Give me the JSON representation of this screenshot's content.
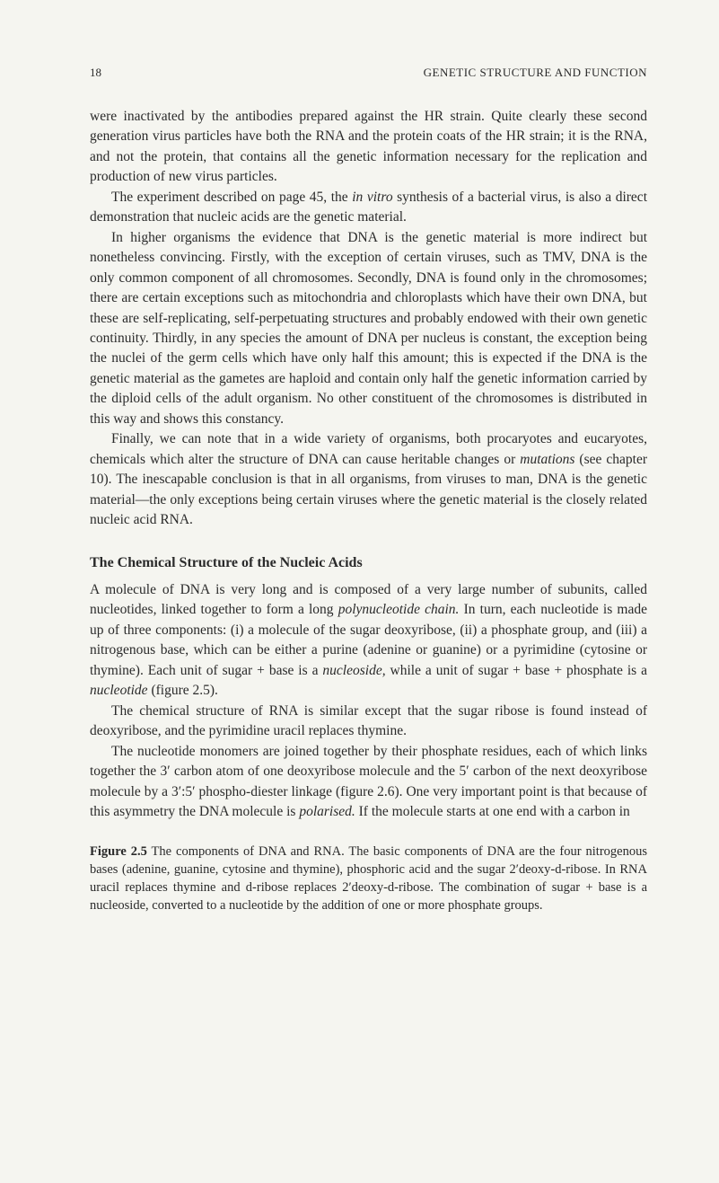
{
  "page": {
    "number": "18",
    "running_head": "GENETIC STRUCTURE AND FUNCTION"
  },
  "paragraphs": {
    "p1": "were inactivated by the antibodies prepared against the HR strain. Quite clearly these second generation virus particles have both the RNA and the protein coats of the HR strain; it is the RNA, and not the protein, that contains all the genetic information necessary for the replication and production of new virus particles.",
    "p2_a": "The experiment described on page 45, the ",
    "p2_italic": "in vitro",
    "p2_b": " synthesis of a bacterial virus, is also a direct demonstration that nucleic acids are the genetic material.",
    "p3": "In higher organisms the evidence that DNA is the genetic material is more indirect but nonetheless convincing. Firstly, with the exception of certain viruses, such as TMV, DNA is the only common component of all chromosomes. Secondly, DNA is found only in the chromosomes; there are certain exceptions such as mitochondria and chloroplasts which have their own DNA, but these are self-replicating, self-perpetuating structures and probably endowed with their own genetic continuity. Thirdly, in any species the amount of DNA per nucleus is constant, the exception being the nuclei of the germ cells which have only half this amount; this is expected if the DNA is the genetic material as the gametes are haploid and contain only half the genetic information carried by the diploid cells of the adult organism. No other constituent of the chromosomes is distributed in this way and shows this constancy.",
    "p4_a": "Finally, we can note that in a wide variety of organisms, both procaryotes and eucaryotes, chemicals which alter the structure of DNA can cause heritable changes or ",
    "p4_italic": "mutations",
    "p4_b": " (see chapter 10). The inescapable conclusion is that in all organisms, from viruses to man, DNA is the genetic material—the only exceptions being certain viruses where the genetic material is the closely related nucleic acid RNA."
  },
  "section": {
    "heading": "The Chemical Structure of the Nucleic Acids",
    "p5_a": "A molecule of DNA is very long and is composed of a very large number of subunits, called nucleotides, linked together to form a long ",
    "p5_italic1": "polynucleotide chain.",
    "p5_b": " In turn, each nucleotide is made up of three components: (i) a molecule of the sugar deoxyribose, (ii) a phosphate group, and (iii) a nitrogenous base, which can be either a purine (adenine or guanine) or a pyrimidine (cytosine or thymine). Each unit of sugar + base is a ",
    "p5_italic2": "nucleoside,",
    "p5_c": " while a unit of sugar + base + phosphate is a ",
    "p5_italic3": "nucleotide",
    "p5_d": " (figure 2.5).",
    "p6": "The chemical structure of RNA is similar except that the sugar ribose is found instead of deoxyribose, and the pyrimidine uracil replaces thymine.",
    "p7_a": "The nucleotide monomers are joined together by their phosphate residues, each of which links together the 3′ carbon atom of one deoxyribose molecule and the 5′ carbon of the next deoxyribose molecule by a 3′:5′ phospho-diester linkage (figure 2.6). One very important point is that because of this asymmetry the DNA molecule is ",
    "p7_italic": "polarised.",
    "p7_b": " If the molecule starts at one end with a carbon in"
  },
  "figure": {
    "label": "Figure 2.5",
    "caption": " The components of DNA and RNA. The basic components of DNA are the four nitrogenous bases (adenine, guanine, cytosine and thymine), phosphoric acid and the sugar 2′deoxy-d-ribose. In RNA uracil replaces thymine and d-ribose replaces 2′deoxy-d-ribose. The combination of sugar + base is a nucleoside, converted to a nucleotide by the addition of one or more phosphate groups."
  }
}
